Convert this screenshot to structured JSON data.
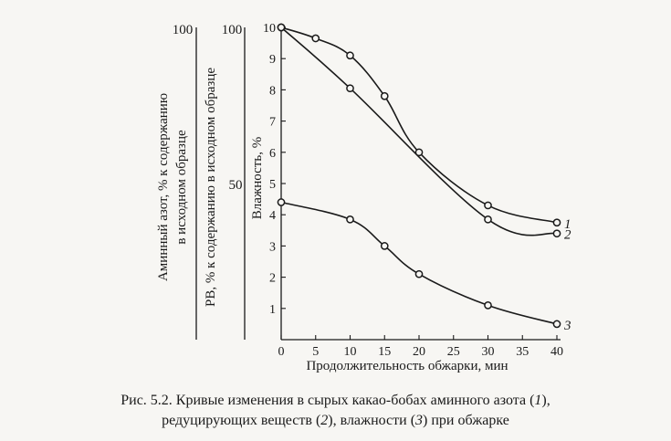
{
  "chart_data": {
    "type": "line",
    "x": [
      0,
      5,
      10,
      15,
      20,
      25,
      30,
      35,
      40
    ],
    "xlabel": "Продолжительность обжарки, мин",
    "x_ticks": [
      "0",
      "5",
      "10",
      "15",
      "20",
      "25",
      "30",
      "35",
      "40"
    ],
    "xlim": [
      0,
      40
    ],
    "ylim": [
      0,
      10
    ],
    "y_ticks": [
      "1",
      "2",
      "3",
      "4",
      "5",
      "6",
      "7",
      "8",
      "9",
      "10"
    ],
    "axes": [
      {
        "label": "Аминный азот, % к содержанию в исходном образце",
        "label_lines": [
          "Аминный азот, % к содержанию",
          "в исходном образце"
        ],
        "top_label": "100",
        "range": [
          0,
          100
        ]
      },
      {
        "label": "РВ, % к содержанию в исходном образце",
        "top_label": "100",
        "mid_label": "50",
        "range": [
          0,
          100
        ]
      },
      {
        "label": "Влажность, %",
        "range": [
          0,
          10
        ]
      }
    ],
    "series": [
      {
        "name": "1",
        "x": [
          0,
          5,
          10,
          15,
          20,
          30,
          40
        ],
        "values": [
          10,
          9.65,
          9.1,
          7.8,
          6.0,
          4.3,
          3.75
        ]
      },
      {
        "name": "2",
        "x": [
          0,
          10,
          30,
          40
        ],
        "values": [
          10,
          8.05,
          3.85,
          3.4
        ]
      },
      {
        "name": "3",
        "x": [
          0,
          10,
          15,
          20,
          30,
          40
        ],
        "values": [
          4.4,
          3.85,
          3.0,
          2.1,
          1.1,
          0.5
        ]
      }
    ],
    "grid": false
  },
  "caption": {
    "prefix": "Рис. 5.2. Кривые изменения в сырых какао-бобах аминного азота (",
    "n1": "1",
    "mid1": "),",
    "line2_start": "редуцирующих веществ (",
    "n2": "2",
    "mid2": "), влажности (",
    "n3": "3",
    "suffix": ") при обжарке"
  },
  "colors": {
    "ink": "#1a1a1a",
    "paper": "#f7f6f3"
  }
}
